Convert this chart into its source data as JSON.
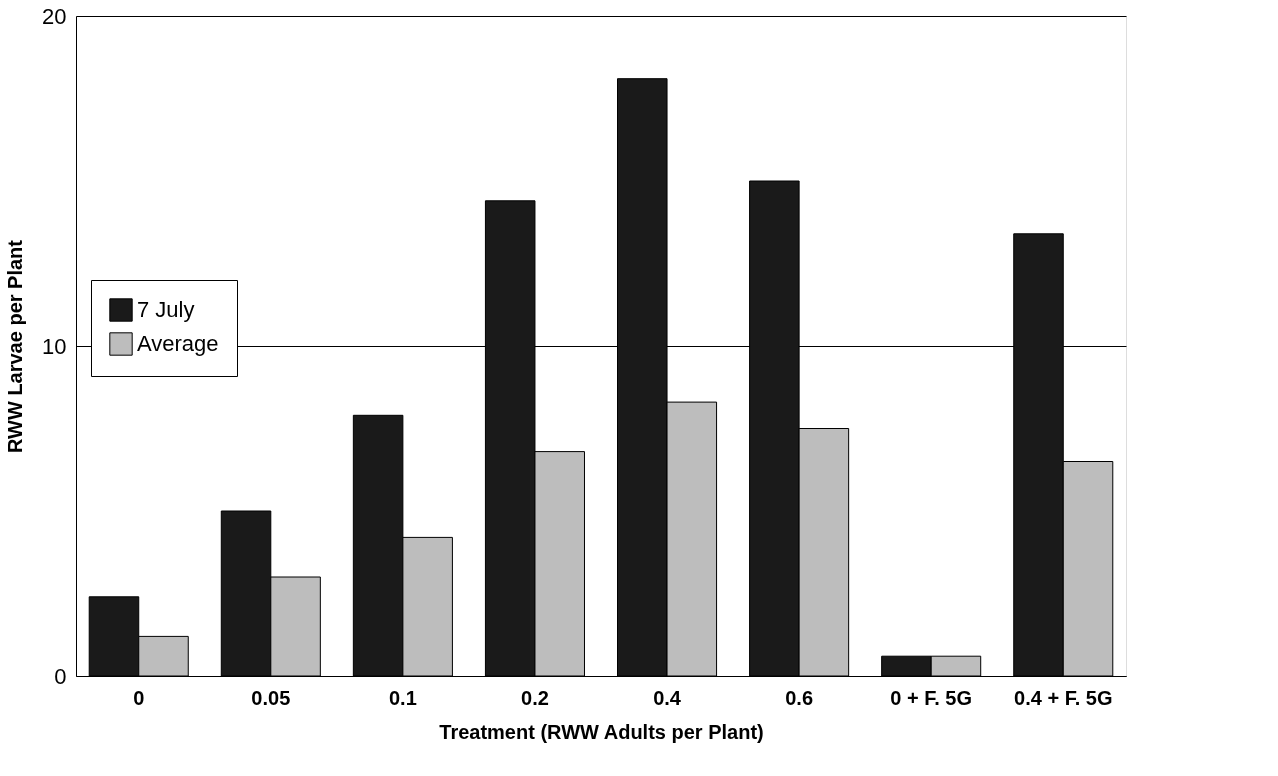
{
  "chart_data": {
    "type": "bar",
    "xlabel": "Treatment (RWW Adults per Plant)",
    "ylabel": "RWW Larvae per Plant",
    "categories": [
      "0",
      "0.05",
      "0.1",
      "0.2",
      "0.4",
      "0.6",
      "0 + F. 5G",
      "0.4 + F. 5G"
    ],
    "series": [
      {
        "name": "7 July",
        "color": "#1a1a1a",
        "values": [
          2.4,
          5.0,
          7.9,
          14.4,
          18.1,
          15.0,
          0.6,
          13.4
        ]
      },
      {
        "name": "Average",
        "color": "#bdbdbd",
        "values": [
          1.2,
          3.0,
          4.2,
          6.8,
          8.3,
          7.5,
          0.6,
          6.5
        ]
      }
    ],
    "ylim": [
      0,
      20
    ],
    "yticks": [
      0,
      10,
      20
    ],
    "grid": "y",
    "legend": "left"
  }
}
